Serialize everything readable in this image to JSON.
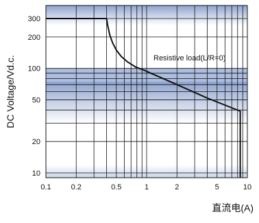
{
  "chart_data": {
    "type": "line",
    "title": "",
    "xlabel": "直流电(A)",
    "ylabel": "DC Voltage/Vd.c.",
    "x_scale": "log",
    "y_scale": "log",
    "xlim": [
      0.1,
      10
    ],
    "ylim": [
      9,
      400
    ],
    "x_ticks": [
      0.1,
      0.2,
      0.5,
      1,
      2,
      5,
      10
    ],
    "x_tick_labels": [
      "0.1",
      "0.2",
      "0.5",
      "1",
      "2",
      "5",
      "10"
    ],
    "y_ticks": [
      10,
      20,
      50,
      100,
      200,
      300
    ],
    "y_tick_labels": [
      "10",
      "20",
      "50",
      "100",
      "200",
      "300"
    ],
    "grid": true,
    "series": [
      {
        "label": "Resistive load(L/R=0)",
        "color": "#111111",
        "x": [
          0.1,
          0.4,
          0.41,
          0.43,
          0.46,
          0.5,
          0.56,
          0.65,
          0.78,
          0.95,
          1.1,
          2,
          4,
          8.5,
          8.5
        ],
        "y": [
          300,
          300,
          260,
          210,
          175,
          150,
          130,
          115,
          103,
          96,
          90,
          70,
          52,
          39,
          9
        ]
      }
    ],
    "colors": {
      "band_dark": "#8fa3cf",
      "band_light": "#ffffff",
      "grid": "#111111",
      "curve": "#111111"
    }
  }
}
